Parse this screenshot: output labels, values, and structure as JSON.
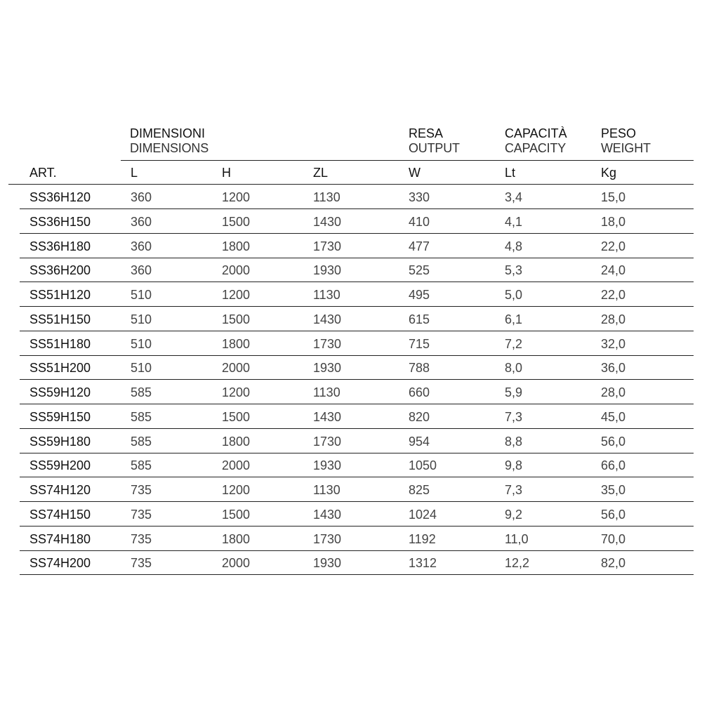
{
  "header": {
    "groups": [
      {
        "title": "DIMENSIONI",
        "subtitle": "DIMENSIONS"
      },
      {
        "title": "RESA",
        "subtitle": "OUTPUT"
      },
      {
        "title": "CAPACITÀ",
        "subtitle": "CAPACITY"
      },
      {
        "title": "PESO",
        "subtitle": "WEIGHT"
      }
    ],
    "columns": [
      "ART.",
      "L",
      "H",
      "ZL",
      "W",
      "Lt",
      "Kg"
    ]
  },
  "rows": [
    [
      "SS36H120",
      "360",
      "1200",
      "1130",
      "330",
      "3,4",
      "15,0"
    ],
    [
      "SS36H150",
      "360",
      "1500",
      "1430",
      "410",
      "4,1",
      "18,0"
    ],
    [
      "SS36H180",
      "360",
      "1800",
      "1730",
      "477",
      "4,8",
      "22,0"
    ],
    [
      "SS36H200",
      "360",
      "2000",
      "1930",
      "525",
      "5,3",
      "24,0"
    ],
    [
      "SS51H120",
      "510",
      "1200",
      "1130",
      "495",
      "5,0",
      "22,0"
    ],
    [
      "SS51H150",
      "510",
      "1500",
      "1430",
      "615",
      "6,1",
      "28,0"
    ],
    [
      "SS51H180",
      "510",
      "1800",
      "1730",
      "715",
      "7,2",
      "32,0"
    ],
    [
      "SS51H200",
      "510",
      "2000",
      "1930",
      "788",
      "8,0",
      "36,0"
    ],
    [
      "SS59H120",
      "585",
      "1200",
      "1130",
      "660",
      "5,9",
      "28,0"
    ],
    [
      "SS59H150",
      "585",
      "1500",
      "1430",
      "820",
      "7,3",
      "45,0"
    ],
    [
      "SS59H180",
      "585",
      "1800",
      "1730",
      "954",
      "8,8",
      "56,0"
    ],
    [
      "SS59H200",
      "585",
      "2000",
      "1930",
      "1050",
      "9,8",
      "66,0"
    ],
    [
      "SS74H120",
      "735",
      "1200",
      "1130",
      "825",
      "7,3",
      "35,0"
    ],
    [
      "SS74H150",
      "735",
      "1500",
      "1430",
      "1024",
      "9,2",
      "56,0"
    ],
    [
      "SS74H180",
      "735",
      "1800",
      "1730",
      "1192",
      "11,0",
      "70,0"
    ],
    [
      "SS74H200",
      "735",
      "2000",
      "1930",
      "1312",
      "12,2",
      "82,0"
    ]
  ]
}
